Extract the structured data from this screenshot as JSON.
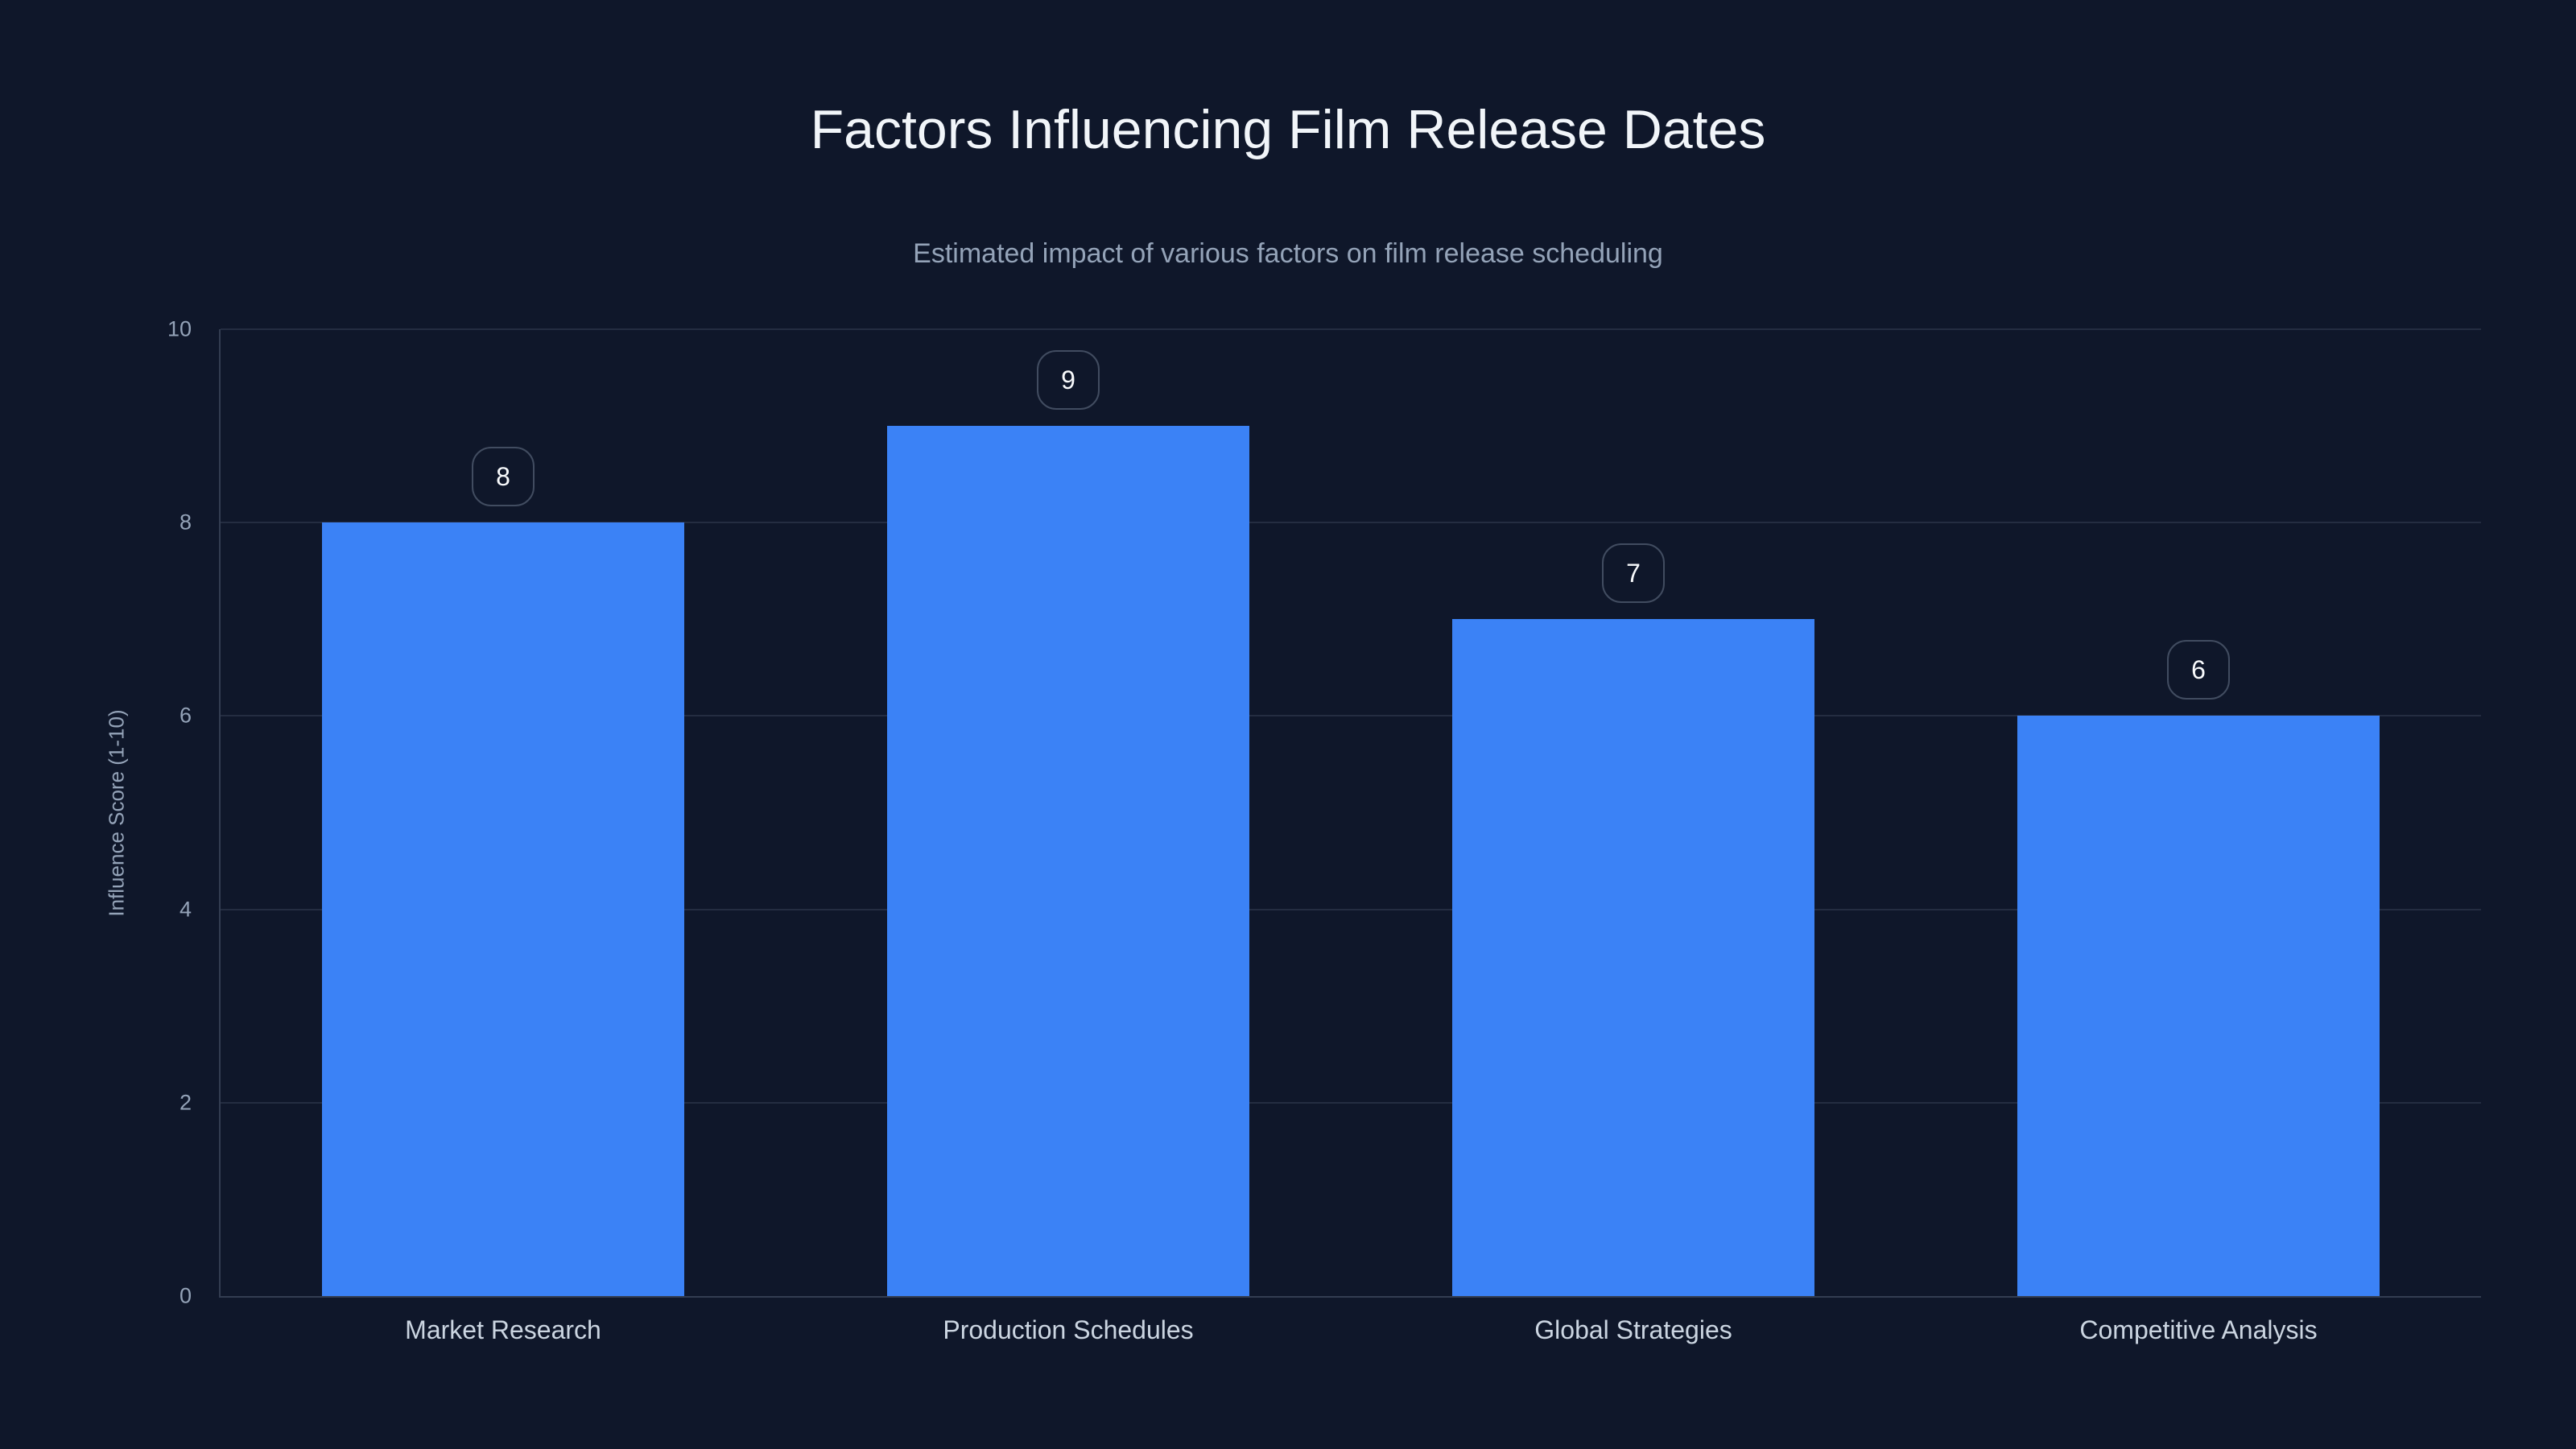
{
  "page": {
    "background": "#0f172a"
  },
  "chart_data": {
    "type": "bar",
    "title": "Factors Influencing Film Release Dates",
    "subtitle": "Estimated impact of various factors on film release scheduling",
    "categories": [
      "Market Research",
      "Production Schedules",
      "Global Strategies",
      "Competitive Analysis"
    ],
    "values": [
      8,
      9,
      7,
      6
    ],
    "data_labels": [
      "8",
      "9",
      "7",
      "6"
    ],
    "xlabel": "",
    "ylabel": "Influence Score (1-10)",
    "ylim": [
      0,
      10
    ],
    "yticks": [
      0,
      2,
      4,
      6,
      8,
      10
    ],
    "grid": true,
    "legend_position": "none",
    "bar_color": "#3b82f6"
  },
  "theme": {
    "background": "#0f172a",
    "bar_color": "#3b82f6",
    "title_color": "#f1f5f9",
    "subtitle_color": "#94a3b8",
    "tick_color": "#94a3b8",
    "xlabel_color": "#cbd5e1",
    "grid_color": "rgba(148,163,184,0.16)",
    "axis_color": "rgba(148,163,184,0.28)",
    "badge_border": "rgba(148,163,184,0.38)",
    "badge_text": "#f8fafc"
  }
}
